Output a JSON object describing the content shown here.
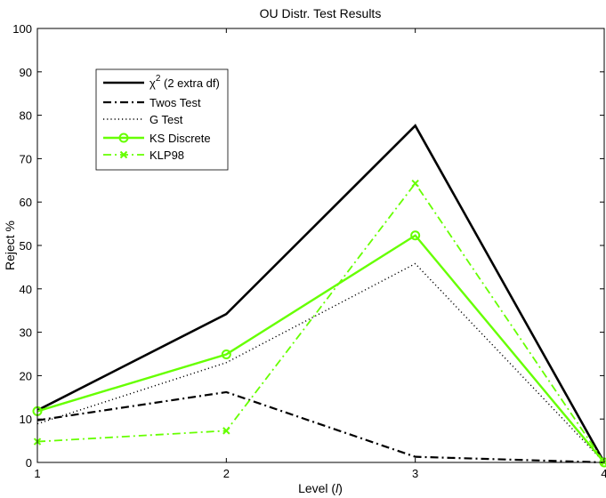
{
  "chart_data": {
    "type": "line",
    "title": "OU Distr. Test Results",
    "xlabel_prefix": "Level (",
    "xlabel_var": "l",
    "xlabel_suffix": ")",
    "ylabel": "Reject %",
    "x": [
      1,
      2,
      3,
      4
    ],
    "xlim": [
      1,
      4
    ],
    "ylim": [
      0,
      100
    ],
    "xticks": [
      "1",
      "2",
      "3",
      "4"
    ],
    "yticks": [
      "0",
      "10",
      "20",
      "30",
      "40",
      "50",
      "60",
      "70",
      "80",
      "90",
      "100"
    ],
    "grid": false,
    "legend_position": "top-left",
    "series": [
      {
        "name_base": "χ",
        "name_sup": "2",
        "name_rest": " (2 extra df)",
        "values": [
          12,
          34.2,
          77.6,
          0
        ],
        "color": "#000000",
        "style": "solid",
        "marker": "none"
      },
      {
        "name": "Twos Test",
        "values": [
          9.7,
          16.2,
          1.3,
          0
        ],
        "color": "#000000",
        "style": "dashdot",
        "marker": "none"
      },
      {
        "name": "G Test",
        "values": [
          8.9,
          23,
          45.8,
          0
        ],
        "color": "#000000",
        "style": "dotted",
        "marker": "none"
      },
      {
        "name": "KS Discrete",
        "values": [
          11.8,
          24.9,
          52.3,
          0
        ],
        "color": "#66ff00",
        "style": "solid",
        "marker": "circle"
      },
      {
        "name": "KLP98",
        "values": [
          4.8,
          7.3,
          64.3,
          0
        ],
        "color": "#66ff00",
        "style": "dashdot",
        "marker": "x"
      }
    ]
  }
}
